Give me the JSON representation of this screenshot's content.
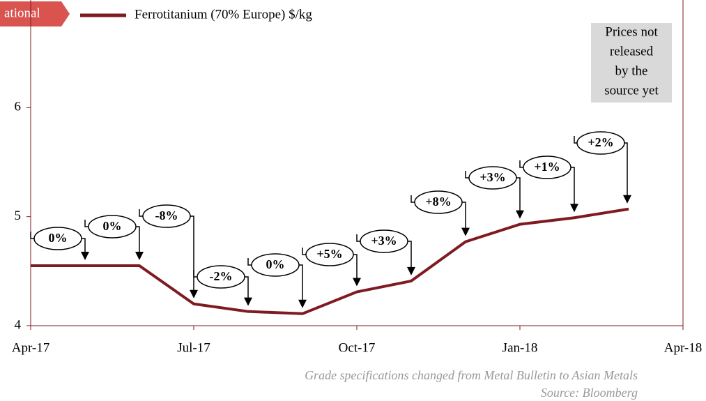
{
  "chart_data": {
    "type": "line",
    "badge": "ational",
    "categories": [
      "Apr-17",
      null,
      null,
      "Jul-17",
      null,
      null,
      "Oct-17",
      null,
      null,
      "Jan-18",
      null,
      null,
      "Apr-18"
    ],
    "series": [
      {
        "name": "Ferrotitanium (70% Europe) $/kg",
        "color": "#7f1a22",
        "values": [
          4.55,
          4.55,
          4.55,
          4.2,
          4.13,
          4.11,
          4.31,
          4.41,
          4.77,
          4.93,
          4.99,
          5.07,
          null
        ]
      }
    ],
    "annotations": [
      "0%",
      "0%",
      "-8%",
      "-2%",
      "0%",
      "+5%",
      "+3%",
      "+8%",
      "+3%",
      "+1%",
      "+2%"
    ],
    "note": [
      "Prices not",
      "released",
      "by the",
      "source yet"
    ],
    "footnotes": [
      "Grade specifications changed from Metal Bulletin to Asian Metals",
      "Source: Bloomberg"
    ],
    "ylim": [
      4,
      7
    ],
    "yticks": [
      4,
      5,
      6
    ]
  }
}
